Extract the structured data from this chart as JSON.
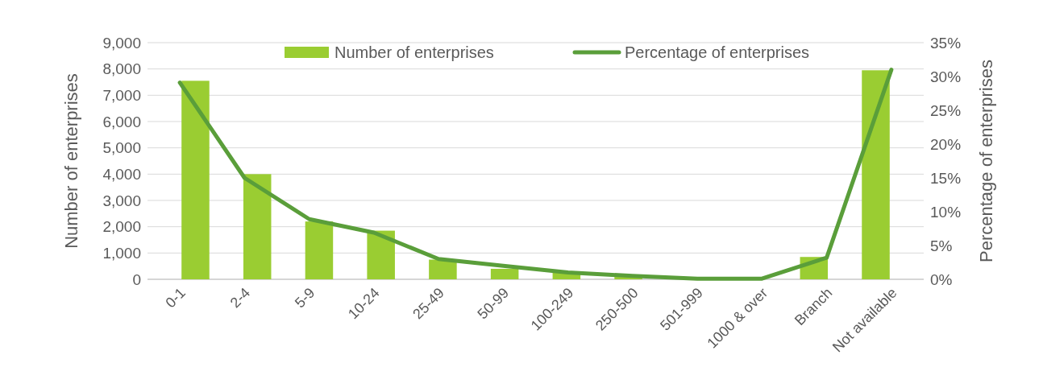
{
  "chart_data": {
    "type": "bar",
    "ylabel": "Number of enterprises",
    "y2label": "Percentage of enterprises",
    "categories": [
      "0-1",
      "2-4",
      "5-9",
      "10-24",
      "25-49",
      "50-99",
      "100-249",
      "250-500",
      "501-999",
      "1000 & over",
      "Branch",
      "Not available"
    ],
    "series": [
      {
        "name": "Number of enterprises",
        "color": "#9acd32",
        "values": [
          7550,
          4000,
          2200,
          1850,
          750,
          400,
          250,
          100,
          30,
          20,
          850,
          7950
        ]
      },
      {
        "name": "Percentage of enterprises",
        "type": "line",
        "axis": "y2",
        "color": "#5a9e3a",
        "values": [
          29.1,
          15,
          8.9,
          6.9,
          3,
          2,
          1,
          0.5,
          0.1,
          0.1,
          3.2,
          31
        ]
      }
    ],
    "ylim": [
      0,
      9000
    ],
    "yticks": [
      {
        "value": 0,
        "label": "0"
      },
      {
        "value": 1000,
        "label": "1,000"
      },
      {
        "value": 2000,
        "label": "2,000"
      },
      {
        "value": 3000,
        "label": "3,000"
      },
      {
        "value": 4000,
        "label": "4,000"
      },
      {
        "value": 5000,
        "label": "5,000"
      },
      {
        "value": 6000,
        "label": "6,000"
      },
      {
        "value": 7000,
        "label": "7,000"
      },
      {
        "value": 8000,
        "label": "8,000"
      },
      {
        "value": 9000,
        "label": "9,000"
      }
    ],
    "y2lim": [
      0,
      35
    ],
    "y2ticks": [
      {
        "value": 0,
        "label": "0%"
      },
      {
        "value": 5,
        "label": "5%"
      },
      {
        "value": 10,
        "label": "10%"
      },
      {
        "value": 15,
        "label": "15%"
      },
      {
        "value": 20,
        "label": "20%"
      },
      {
        "value": 25,
        "label": "25%"
      },
      {
        "value": 30,
        "label": "30%"
      },
      {
        "value": 35,
        "label": "35%"
      }
    ],
    "grid": "y",
    "legend": "top"
  }
}
